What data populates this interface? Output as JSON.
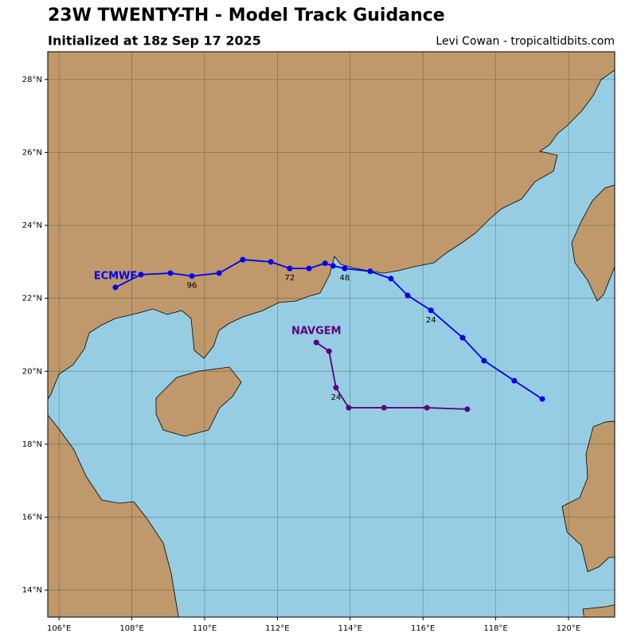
{
  "chart_data": {
    "type": "line",
    "title": "23W TWENTY-TH - Model Track Guidance",
    "subtitle": "Initialized at 18z Sep 17 2025",
    "credit": "Levi Cowan - tropicaltidbits.com",
    "xlim": [
      105.69,
      121.27
    ],
    "ylim": [
      13.26,
      28.76
    ],
    "xticks": [
      {
        "value": 106,
        "label": "106°E"
      },
      {
        "value": 108,
        "label": "108°E"
      },
      {
        "value": 110,
        "label": "110°E"
      },
      {
        "value": 112,
        "label": "112°E"
      },
      {
        "value": 114,
        "label": "114°E"
      },
      {
        "value": 116,
        "label": "116°E"
      },
      {
        "value": 118,
        "label": "118°E"
      },
      {
        "value": 120,
        "label": "120°E"
      }
    ],
    "yticks": [
      {
        "value": 14,
        "label": "14°N"
      },
      {
        "value": 16,
        "label": "16°N"
      },
      {
        "value": 18,
        "label": "18°N"
      },
      {
        "value": 20,
        "label": "20°N"
      },
      {
        "value": 22,
        "label": "22°N"
      },
      {
        "value": 24,
        "label": "24°N"
      },
      {
        "value": 26,
        "label": "26°N"
      },
      {
        "value": 28,
        "label": "28°N"
      }
    ],
    "grid": true,
    "series": [
      {
        "name": "ECMWF",
        "color": "#0000ee",
        "x": [
          119.28,
          118.51,
          117.68,
          117.09,
          116.22,
          115.58,
          115.12,
          114.55,
          113.85,
          113.53,
          113.31,
          112.87,
          112.34,
          111.82,
          111.05,
          110.4,
          109.65,
          109.06,
          108.25,
          107.55
        ],
        "values": [
          19.24,
          19.74,
          20.29,
          20.92,
          21.67,
          22.08,
          22.54,
          22.74,
          22.82,
          22.89,
          22.96,
          22.82,
          22.82,
          23.0,
          23.06,
          22.69,
          22.61,
          22.69,
          22.65,
          22.3
        ],
        "point_labels": [
          null,
          null,
          null,
          null,
          "24",
          null,
          null,
          null,
          "48",
          null,
          null,
          null,
          "72",
          null,
          null,
          null,
          "96",
          null,
          null,
          null
        ]
      },
      {
        "name": "NAVGEM",
        "color": "#5c0080",
        "x": [
          117.22,
          116.11,
          114.93,
          113.96,
          113.61,
          113.42,
          113.07
        ],
        "values": [
          18.96,
          19.0,
          19.0,
          19.0,
          19.55,
          20.55,
          20.79
        ],
        "point_labels": [
          null,
          null,
          null,
          null,
          "24",
          null,
          null
        ]
      }
    ]
  }
}
